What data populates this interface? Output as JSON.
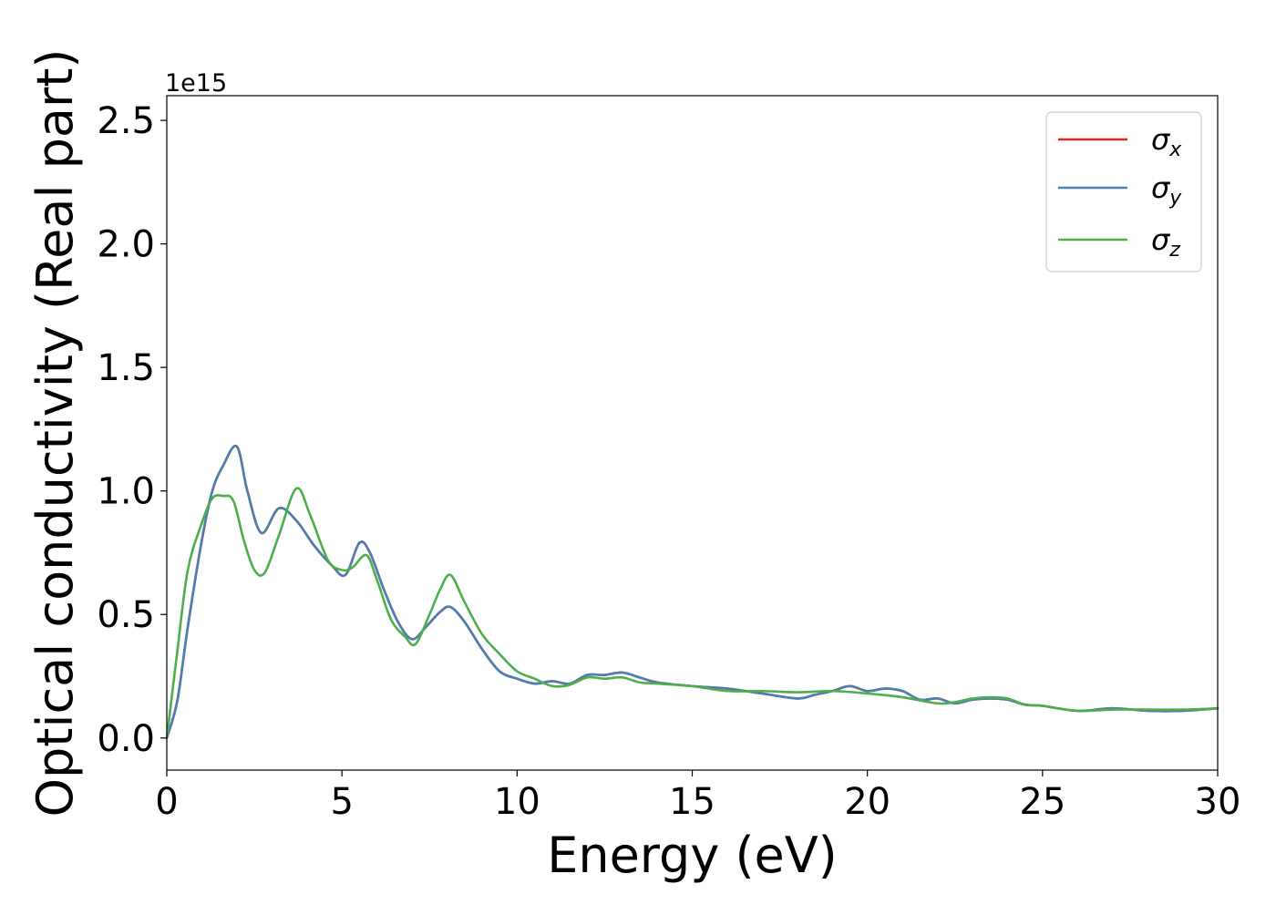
{
  "chart_data": {
    "type": "line",
    "title": "",
    "xlabel": "Energy (eV)",
    "ylabel": "Optical conductivity (Real part)",
    "offset_text": "1e15",
    "xlim": [
      0,
      30
    ],
    "ylim": [
      -0.13,
      2.6
    ],
    "xticks": [
      0,
      5,
      10,
      15,
      20,
      25,
      30
    ],
    "xtick_labels": [
      "0",
      "5",
      "10",
      "15",
      "20",
      "25",
      "30"
    ],
    "yticks": [
      0.0,
      0.5,
      1.0,
      1.5,
      2.0,
      2.5
    ],
    "ytick_labels": [
      "0.0",
      "0.5",
      "1.0",
      "1.5",
      "2.0",
      "2.5"
    ],
    "grid": false,
    "legend_position": "top-right",
    "series": [
      {
        "name": "σ_x",
        "legend_main": "σ",
        "legend_sub": "x",
        "color": "#d62728",
        "x": [
          0,
          0.3,
          0.6,
          1.0,
          1.3,
          1.6,
          2.0,
          2.3,
          2.7,
          3.2,
          3.7,
          4.2,
          4.7,
          5.1,
          5.5,
          5.8,
          6.2,
          6.6,
          7.0,
          7.4,
          7.8,
          8.1,
          8.5,
          9.0,
          9.5,
          10.0,
          10.5,
          11.0,
          11.5,
          12.0,
          12.5,
          13.0,
          13.5,
          14.0,
          15.0,
          16.0,
          17.0,
          18.0,
          18.5,
          19.0,
          19.5,
          20.0,
          20.5,
          21.0,
          21.5,
          22.0,
          22.5,
          23.0,
          23.5,
          24.0,
          24.5,
          25.0,
          26.0,
          27.0,
          28.0,
          29.0,
          30.0
        ],
        "y": [
          0.0,
          0.15,
          0.45,
          0.8,
          1.0,
          1.1,
          1.18,
          1.0,
          0.83,
          0.93,
          0.88,
          0.78,
          0.7,
          0.66,
          0.79,
          0.75,
          0.6,
          0.47,
          0.4,
          0.45,
          0.51,
          0.53,
          0.47,
          0.36,
          0.27,
          0.24,
          0.22,
          0.23,
          0.22,
          0.255,
          0.255,
          0.265,
          0.245,
          0.225,
          0.21,
          0.2,
          0.18,
          0.16,
          0.175,
          0.19,
          0.21,
          0.19,
          0.2,
          0.19,
          0.155,
          0.16,
          0.14,
          0.155,
          0.16,
          0.155,
          0.135,
          0.13,
          0.11,
          0.12,
          0.11,
          0.11,
          0.12
        ]
      },
      {
        "name": "σ_y",
        "legend_main": "σ",
        "legend_sub": "y",
        "color": "#4a7fb0",
        "x": [
          0,
          0.3,
          0.6,
          1.0,
          1.3,
          1.6,
          2.0,
          2.3,
          2.7,
          3.2,
          3.7,
          4.2,
          4.7,
          5.1,
          5.5,
          5.8,
          6.2,
          6.6,
          7.0,
          7.4,
          7.8,
          8.1,
          8.5,
          9.0,
          9.5,
          10.0,
          10.5,
          11.0,
          11.5,
          12.0,
          12.5,
          13.0,
          13.5,
          14.0,
          15.0,
          16.0,
          17.0,
          18.0,
          18.5,
          19.0,
          19.5,
          20.0,
          20.5,
          21.0,
          21.5,
          22.0,
          22.5,
          23.0,
          23.5,
          24.0,
          24.5,
          25.0,
          26.0,
          27.0,
          28.0,
          29.0,
          30.0
        ],
        "y": [
          0.0,
          0.15,
          0.45,
          0.8,
          1.0,
          1.1,
          1.18,
          1.0,
          0.83,
          0.93,
          0.88,
          0.78,
          0.7,
          0.66,
          0.79,
          0.75,
          0.6,
          0.47,
          0.4,
          0.45,
          0.51,
          0.53,
          0.47,
          0.36,
          0.27,
          0.24,
          0.22,
          0.23,
          0.22,
          0.255,
          0.255,
          0.265,
          0.245,
          0.225,
          0.21,
          0.2,
          0.18,
          0.16,
          0.175,
          0.19,
          0.21,
          0.19,
          0.2,
          0.19,
          0.155,
          0.16,
          0.14,
          0.155,
          0.16,
          0.155,
          0.135,
          0.13,
          0.11,
          0.12,
          0.11,
          0.11,
          0.12
        ]
      },
      {
        "name": "σ_z",
        "legend_main": "σ",
        "legend_sub": "z",
        "color": "#4daf4a",
        "x": [
          0,
          0.3,
          0.6,
          1.0,
          1.3,
          1.6,
          1.9,
          2.2,
          2.5,
          2.8,
          3.2,
          3.7,
          4.1,
          4.6,
          5.0,
          5.3,
          5.7,
          6.0,
          6.4,
          6.8,
          7.1,
          7.5,
          7.8,
          8.1,
          8.5,
          9.0,
          9.5,
          10.0,
          10.5,
          11.0,
          11.5,
          12.0,
          12.5,
          13.0,
          13.5,
          14.0,
          15.0,
          16.0,
          17.0,
          18.0,
          19.0,
          20.0,
          21.0,
          22.0,
          22.5,
          23.0,
          23.5,
          24.0,
          24.5,
          25.0,
          26.0,
          27.0,
          28.0,
          29.0,
          30.0
        ],
        "y": [
          0.0,
          0.35,
          0.68,
          0.87,
          0.97,
          0.98,
          0.96,
          0.8,
          0.68,
          0.67,
          0.82,
          1.01,
          0.9,
          0.72,
          0.68,
          0.69,
          0.74,
          0.64,
          0.48,
          0.41,
          0.38,
          0.5,
          0.6,
          0.66,
          0.55,
          0.42,
          0.34,
          0.27,
          0.24,
          0.21,
          0.215,
          0.245,
          0.24,
          0.245,
          0.225,
          0.22,
          0.21,
          0.19,
          0.19,
          0.185,
          0.19,
          0.18,
          0.165,
          0.14,
          0.145,
          0.16,
          0.165,
          0.16,
          0.135,
          0.13,
          0.11,
          0.115,
          0.115,
          0.115,
          0.12
        ]
      }
    ]
  }
}
